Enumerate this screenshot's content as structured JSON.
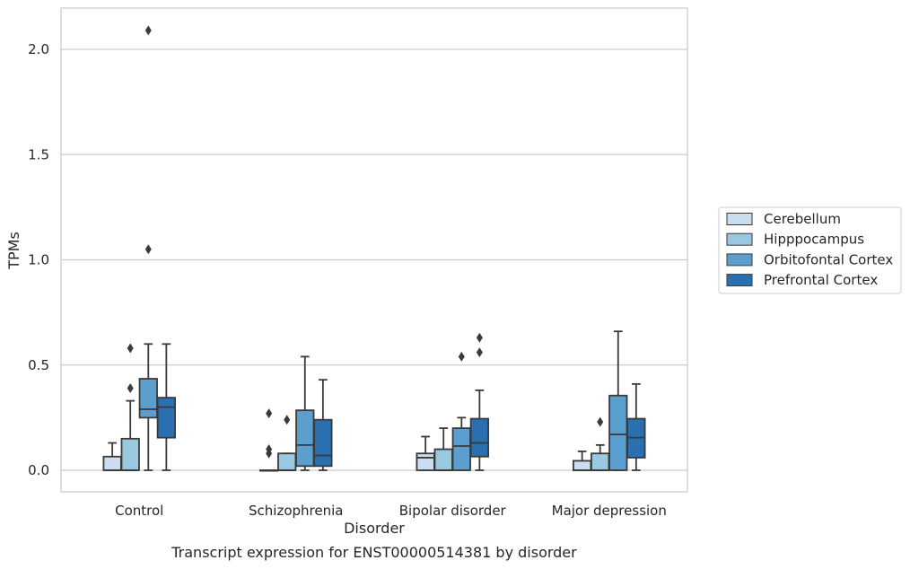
{
  "chart_data": {
    "type": "box",
    "title": "",
    "caption": "Transcript expression for ENST00000514381 by disorder",
    "xlabel": "Disorder",
    "ylabel": "TPMs",
    "ylim": [
      -0.1,
      2.2
    ],
    "yticks": [
      0.0,
      0.5,
      1.0,
      1.5,
      2.0
    ],
    "ytick_labels": [
      "0.0",
      "0.5",
      "1.0",
      "1.5",
      "2.0"
    ],
    "grid": "horizontal",
    "legend_position": "right",
    "categories": [
      "Control",
      "Schizophrenia",
      "Bipolar disorder",
      "Major depression"
    ],
    "series": [
      {
        "name": "Cerebellum",
        "color": "#cadef0",
        "boxes": [
          {
            "whisker_low": 0.0,
            "q1": 0.0,
            "median": 0.0,
            "q3": 0.065,
            "whisker_high": 0.13,
            "outliers": []
          },
          {
            "whisker_low": 0.0,
            "q1": 0.0,
            "median": 0.0,
            "q3": 0.0,
            "whisker_high": 0.0,
            "outliers": [
              0.08,
              0.1,
              0.27
            ]
          },
          {
            "whisker_low": 0.0,
            "q1": 0.0,
            "median": 0.06,
            "q3": 0.08,
            "whisker_high": 0.16,
            "outliers": []
          },
          {
            "whisker_low": 0.0,
            "q1": 0.0,
            "median": 0.0,
            "q3": 0.045,
            "whisker_high": 0.09,
            "outliers": []
          }
        ]
      },
      {
        "name": "Hipppocampus",
        "color": "#9ac8e0",
        "boxes": [
          {
            "whisker_low": 0.0,
            "q1": 0.0,
            "median": 0.0,
            "q3": 0.15,
            "whisker_high": 0.33,
            "outliers": [
              0.39,
              0.58
            ]
          },
          {
            "whisker_low": 0.0,
            "q1": 0.0,
            "median": 0.0,
            "q3": 0.08,
            "whisker_high": 0.08,
            "outliers": [
              0.24
            ]
          },
          {
            "whisker_low": 0.0,
            "q1": 0.0,
            "median": 0.0,
            "q3": 0.1,
            "whisker_high": 0.2,
            "outliers": []
          },
          {
            "whisker_low": 0.0,
            "q1": 0.0,
            "median": 0.0,
            "q3": 0.08,
            "whisker_high": 0.12,
            "outliers": [
              0.23
            ]
          }
        ]
      },
      {
        "name": "Orbitofontal Cortex",
        "color": "#5a9fcd",
        "boxes": [
          {
            "whisker_low": 0.0,
            "q1": 0.25,
            "median": 0.29,
            "q3": 0.435,
            "whisker_high": 0.6,
            "outliers": [
              1.05,
              2.09
            ]
          },
          {
            "whisker_low": 0.0,
            "q1": 0.02,
            "median": 0.12,
            "q3": 0.285,
            "whisker_high": 0.54,
            "outliers": []
          },
          {
            "whisker_low": 0.0,
            "q1": 0.0,
            "median": 0.115,
            "q3": 0.2,
            "whisker_high": 0.25,
            "outliers": [
              0.54
            ]
          },
          {
            "whisker_low": 0.0,
            "q1": 0.0,
            "median": 0.17,
            "q3": 0.355,
            "whisker_high": 0.66,
            "outliers": []
          }
        ]
      },
      {
        "name": "Prefrontal Cortex",
        "color": "#2a6fb0",
        "boxes": [
          {
            "whisker_low": 0.0,
            "q1": 0.155,
            "median": 0.3,
            "q3": 0.345,
            "whisker_high": 0.6,
            "outliers": []
          },
          {
            "whisker_low": 0.0,
            "q1": 0.02,
            "median": 0.07,
            "q3": 0.24,
            "whisker_high": 0.43,
            "outliers": []
          },
          {
            "whisker_low": 0.0,
            "q1": 0.065,
            "median": 0.13,
            "q3": 0.245,
            "whisker_high": 0.38,
            "outliers": [
              0.56,
              0.63
            ]
          },
          {
            "whisker_low": 0.0,
            "q1": 0.06,
            "median": 0.155,
            "q3": 0.245,
            "whisker_high": 0.41,
            "outliers": []
          }
        ]
      }
    ]
  }
}
